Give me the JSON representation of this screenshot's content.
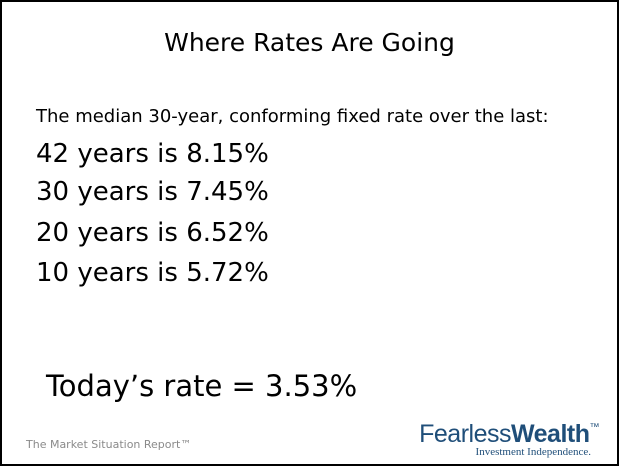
{
  "title": "Where Rates Are Going",
  "intro": "The median 30-year, conforming fixed rate over the last:",
  "items": [
    "42 years is 8.15%",
    "30 years is 7.45%",
    "20 years is 6.52%",
    "10 years is 5.72%"
  ],
  "today": "Today’s rate = 3.53%",
  "footer": "The Market Situation Report™",
  "logo": {
    "part1": "Fearless",
    "part2": "Wealth",
    "mark": "™",
    "tagline": "Investment Independence."
  }
}
